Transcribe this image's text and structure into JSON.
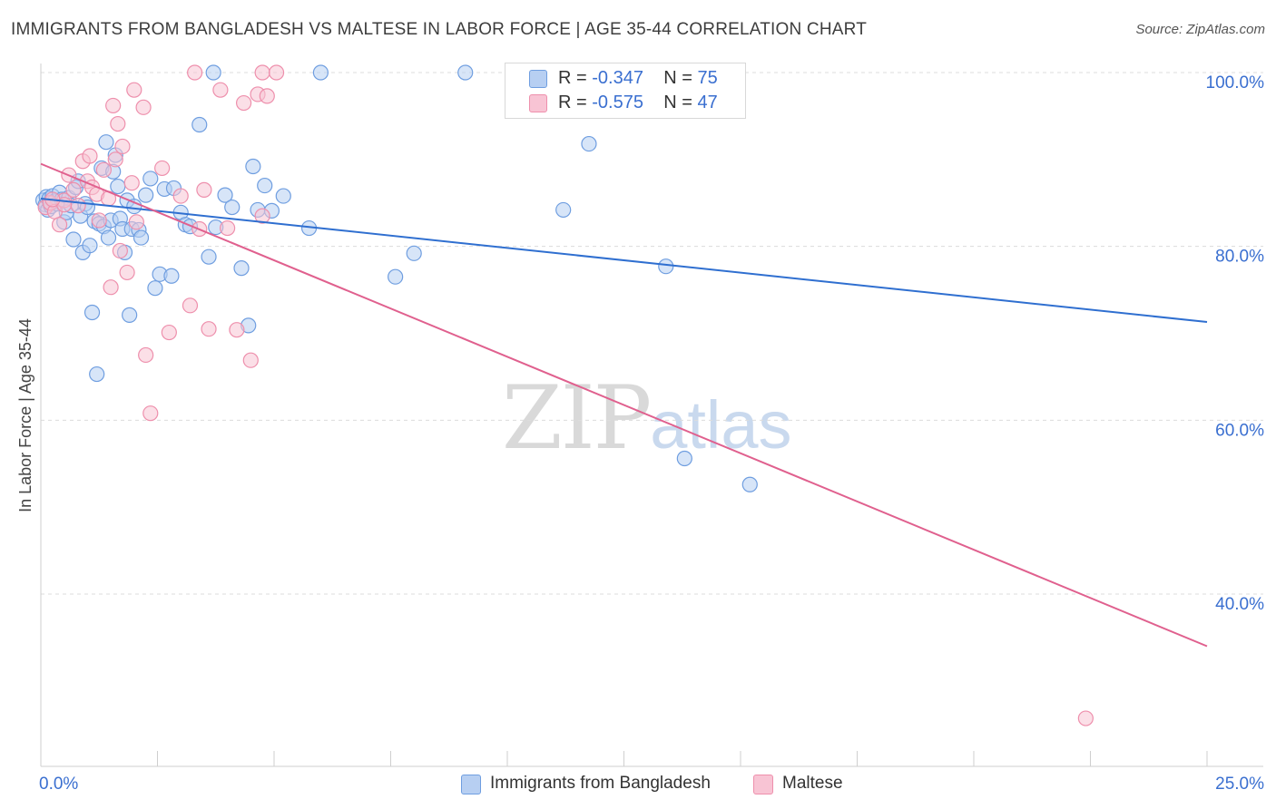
{
  "title": "IMMIGRANTS FROM BANGLADESH VS MALTESE IN LABOR FORCE | AGE 35-44 CORRELATION CHART",
  "source": "Source: ZipAtlas.com",
  "watermark": {
    "zip": "ZIP",
    "atlas": "atlas"
  },
  "legend": {
    "rows": [
      {
        "r_label": "R = ",
        "r_value": "-0.347",
        "n_label": "N = ",
        "n_value": "75",
        "color": "#a9c4f0"
      },
      {
        "r_label": "R = ",
        "r_value": "-0.575",
        "n_label": "N = ",
        "n_value": "47",
        "color": "#f5b6c9"
      }
    ]
  },
  "bottom_legend": [
    "Immigrants from Bangladesh",
    "Maltese"
  ],
  "chart_data": {
    "type": "scatter",
    "ylabel": "In Labor Force | Age 35-44",
    "xlim": [
      0,
      25
    ],
    "ylim": [
      20,
      104
    ],
    "x_tick_labels": [
      "0.0%",
      "25.0%"
    ],
    "y_ticks": [
      {
        "value": 100,
        "label": "100.0%"
      },
      {
        "value": 80,
        "label": "80.0%"
      },
      {
        "value": 60,
        "label": "60.0%"
      },
      {
        "value": 40,
        "label": "40.0%"
      }
    ],
    "grid": true,
    "legend_position": "top-center",
    "series": [
      {
        "name": "Immigrants from Bangladesh",
        "color": "#6f9ee0",
        "fill": "#b7cff2",
        "trend": {
          "x": [
            0,
            25
          ],
          "y": [
            85.5,
            71.3
          ],
          "color": "#2f6fd0"
        },
        "points": [
          [
            0.05,
            85.3
          ],
          [
            0.1,
            84.8
          ],
          [
            0.12,
            85.7
          ],
          [
            0.15,
            84.2
          ],
          [
            0.18,
            85.5
          ],
          [
            0.2,
            85.0
          ],
          [
            0.22,
            84.6
          ],
          [
            0.25,
            85.8
          ],
          [
            0.3,
            85.2
          ],
          [
            0.35,
            84.9
          ],
          [
            0.4,
            86.2
          ],
          [
            0.45,
            85.4
          ],
          [
            0.5,
            82.8
          ],
          [
            0.55,
            83.9
          ],
          [
            0.6,
            85.6
          ],
          [
            0.65,
            84.7
          ],
          [
            0.7,
            80.8
          ],
          [
            0.75,
            86.8
          ],
          [
            0.8,
            87.5
          ],
          [
            0.85,
            83.5
          ],
          [
            0.9,
            79.3
          ],
          [
            0.95,
            84.9
          ],
          [
            1.0,
            84.5
          ],
          [
            1.05,
            80.1
          ],
          [
            1.1,
            72.4
          ],
          [
            1.15,
            82.9
          ],
          [
            1.2,
            65.3
          ],
          [
            1.25,
            82.6
          ],
          [
            1.3,
            89.0
          ],
          [
            1.35,
            82.3
          ],
          [
            1.4,
            92.0
          ],
          [
            1.45,
            81.0
          ],
          [
            1.5,
            83.0
          ],
          [
            1.55,
            88.6
          ],
          [
            1.6,
            90.5
          ],
          [
            1.65,
            86.9
          ],
          [
            1.7,
            83.2
          ],
          [
            1.75,
            82.0
          ],
          [
            1.8,
            79.3
          ],
          [
            1.85,
            85.3
          ],
          [
            1.9,
            72.1
          ],
          [
            1.95,
            82.0
          ],
          [
            2.0,
            84.6
          ],
          [
            2.1,
            81.9
          ],
          [
            2.15,
            81.0
          ],
          [
            2.25,
            85.9
          ],
          [
            2.35,
            87.8
          ],
          [
            2.45,
            75.2
          ],
          [
            2.55,
            76.8
          ],
          [
            2.65,
            86.6
          ],
          [
            2.8,
            76.6
          ],
          [
            2.85,
            86.7
          ],
          [
            3.0,
            83.9
          ],
          [
            3.1,
            82.5
          ],
          [
            3.2,
            82.3
          ],
          [
            3.4,
            94.0
          ],
          [
            3.6,
            78.8
          ],
          [
            3.75,
            82.2
          ],
          [
            3.95,
            85.9
          ],
          [
            4.1,
            84.5
          ],
          [
            4.3,
            77.5
          ],
          [
            4.45,
            70.9
          ],
          [
            4.55,
            89.2
          ],
          [
            4.65,
            84.2
          ],
          [
            4.8,
            87.0
          ],
          [
            4.95,
            84.1
          ],
          [
            5.2,
            85.8
          ],
          [
            5.75,
            82.1
          ],
          [
            7.6,
            76.5
          ],
          [
            8.0,
            79.2
          ],
          [
            11.2,
            84.2
          ],
          [
            11.75,
            91.8
          ],
          [
            13.4,
            77.7
          ],
          [
            13.8,
            55.6
          ],
          [
            15.2,
            52.6
          ]
        ],
        "top_row_points": [
          [
            3.7,
            100
          ],
          [
            6.0,
            100
          ],
          [
            9.1,
            100
          ]
        ]
      },
      {
        "name": "Maltese",
        "color": "#ee8fac",
        "fill": "#f8c4d4",
        "trend": {
          "x": [
            0,
            25
          ],
          "y": [
            89.5,
            34.0
          ],
          "color": "#e0608e"
        },
        "points": [
          [
            0.1,
            84.5
          ],
          [
            0.2,
            85.0
          ],
          [
            0.3,
            84.0
          ],
          [
            0.4,
            82.5
          ],
          [
            0.5,
            85.3
          ],
          [
            0.6,
            88.2
          ],
          [
            0.7,
            86.5
          ],
          [
            0.8,
            84.7
          ],
          [
            0.9,
            89.8
          ],
          [
            1.0,
            87.5
          ],
          [
            1.05,
            90.4
          ],
          [
            1.1,
            86.8
          ],
          [
            1.2,
            86.0
          ],
          [
            1.25,
            83.0
          ],
          [
            1.35,
            88.8
          ],
          [
            1.45,
            85.5
          ],
          [
            1.5,
            75.3
          ],
          [
            1.55,
            96.2
          ],
          [
            1.6,
            90.0
          ],
          [
            1.65,
            94.1
          ],
          [
            1.7,
            79.5
          ],
          [
            1.75,
            91.5
          ],
          [
            1.85,
            77.0
          ],
          [
            1.95,
            87.3
          ],
          [
            2.05,
            82.8
          ],
          [
            2.25,
            67.5
          ],
          [
            2.35,
            60.8
          ],
          [
            2.6,
            89.0
          ],
          [
            2.75,
            70.1
          ],
          [
            3.0,
            85.8
          ],
          [
            3.2,
            73.2
          ],
          [
            3.4,
            82.0
          ],
          [
            3.6,
            70.5
          ],
          [
            3.85,
            98.0
          ],
          [
            4.0,
            82.1
          ],
          [
            4.2,
            70.4
          ],
          [
            4.35,
            96.5
          ],
          [
            4.5,
            66.9
          ],
          [
            4.65,
            97.5
          ],
          [
            4.75,
            83.5
          ],
          [
            4.85,
            97.3
          ],
          [
            2.0,
            98.0
          ],
          [
            2.2,
            96.0
          ],
          [
            0.5,
            84.8
          ],
          [
            0.25,
            85.4
          ],
          [
            22.4,
            25.7
          ],
          [
            3.5,
            86.5
          ]
        ],
        "top_row_points": [
          [
            3.3,
            100
          ],
          [
            4.75,
            100
          ],
          [
            5.05,
            100
          ]
        ]
      }
    ]
  }
}
